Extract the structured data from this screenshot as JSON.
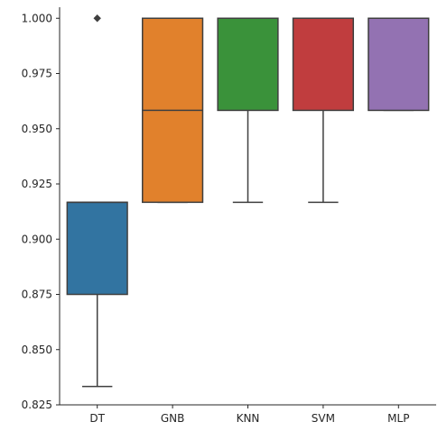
{
  "chart_data": {
    "type": "boxplot",
    "categories": [
      "DT",
      "GNB",
      "KNN",
      "SVM",
      "MLP"
    ],
    "boxes": [
      {
        "name": "DT",
        "color": "#3274a1",
        "whisker_low": 0.8333,
        "q1": 0.875,
        "median": 0.9167,
        "q3": 0.9167,
        "whisker_high": 0.9167,
        "outliers": [
          1.0
        ]
      },
      {
        "name": "GNB",
        "color": "#e1812c",
        "whisker_low": 0.9167,
        "q1": 0.9167,
        "median": 0.9583,
        "q3": 1.0,
        "whisker_high": 1.0,
        "outliers": []
      },
      {
        "name": "KNN",
        "color": "#3a923a",
        "whisker_low": 0.9167,
        "q1": 0.9583,
        "median": 1.0,
        "q3": 1.0,
        "whisker_high": 1.0,
        "outliers": []
      },
      {
        "name": "SVM",
        "color": "#c03d3e",
        "whisker_low": 0.9167,
        "q1": 0.9583,
        "median": 1.0,
        "q3": 1.0,
        "whisker_high": 1.0,
        "outliers": []
      },
      {
        "name": "MLP",
        "color": "#9372b2",
        "whisker_low": 0.9583,
        "q1": 0.9583,
        "median": 1.0,
        "q3": 1.0,
        "whisker_high": 1.0,
        "outliers": []
      }
    ],
    "ylim": [
      0.825,
      1.005
    ],
    "yticks": [
      0.825,
      0.85,
      0.875,
      0.9,
      0.925,
      0.95,
      0.975,
      1.0
    ],
    "ytick_labels": [
      "0.825",
      "0.850",
      "0.875",
      "0.900",
      "0.925",
      "0.950",
      "0.975",
      "1.000"
    ],
    "title": "",
    "xlabel": "",
    "ylabel": "",
    "grid": false,
    "line_color": "#3f3f3f",
    "axis_color": "#262626"
  }
}
